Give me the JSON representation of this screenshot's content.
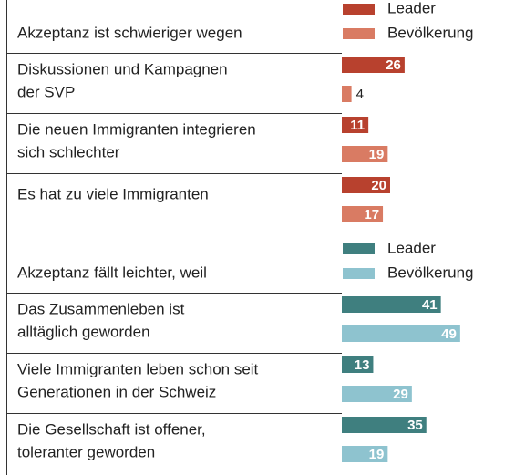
{
  "chart_data": [
    {
      "type": "bar",
      "title": "Akzeptanz ist schwieriger wegen",
      "categories": [
        [
          "Diskussionen und Kampagnen",
          "der SVP"
        ],
        [
          "Die neuen Immigranten integrieren",
          "sich schlechter"
        ],
        [
          "Es hat zu viele Immigranten"
        ]
      ],
      "series": [
        {
          "name": "Leader",
          "color": "#b8412e",
          "values": [
            26,
            11,
            20
          ]
        },
        {
          "name": "Bevölkerung",
          "color": "#d97b63",
          "values": [
            4,
            19,
            17
          ]
        }
      ]
    },
    {
      "type": "bar",
      "title": "Akzeptanz fällt leichter, weil",
      "categories": [
        [
          "Das Zusammenleben ist",
          "alltäglich geworden"
        ],
        [
          "Viele Immigranten leben schon seit",
          "Generationen in der Schweiz"
        ],
        [
          "Die Gesellschaft ist offener,",
          "toleranter geworden"
        ]
      ],
      "series": [
        {
          "name": "Leader",
          "color": "#3f7f7f",
          "values": [
            41,
            13,
            35
          ]
        },
        {
          "name": "Bevölkerung",
          "color": "#8ec3cf",
          "values": [
            49,
            29,
            19
          ]
        }
      ]
    }
  ]
}
